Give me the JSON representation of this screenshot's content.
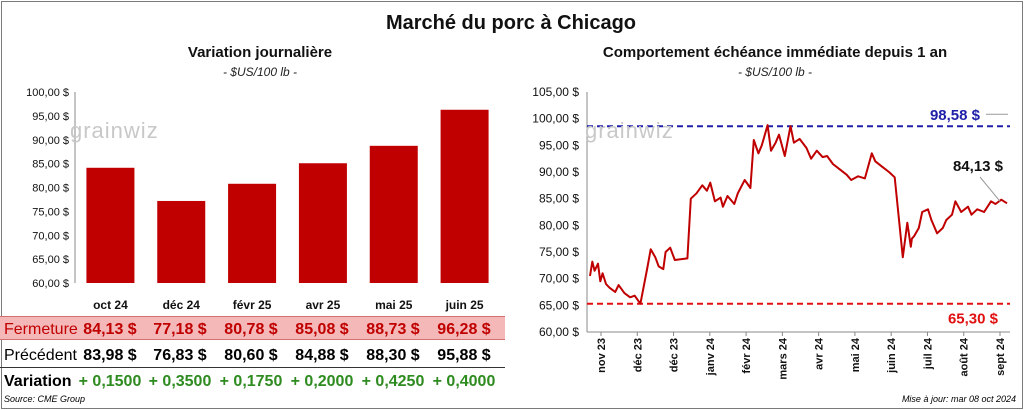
{
  "title": "Marché du porc à Chicago",
  "watermark": "grainwiz",
  "left_panel": {
    "title": "Variation journalière",
    "unit": "- $US/100 lb -"
  },
  "right_panel": {
    "title": "Comportement échéance immédiate depuis 1 an",
    "unit": "- $US/100 lb -"
  },
  "table": {
    "rows": [
      {
        "label": "Fermeture",
        "values": [
          "84,13  $",
          "77,18  $",
          "80,78  $",
          "85,08  $",
          "88,73  $",
          "96,28  $"
        ]
      },
      {
        "label": "Précédent",
        "values": [
          "83,98  $",
          "76,83  $",
          "80,60  $",
          "84,88  $",
          "88,30  $",
          "95,88  $"
        ]
      },
      {
        "label": "Variation",
        "values": [
          "+ 0,1500",
          "+ 0,3500",
          "+ 0,1750",
          "+ 0,2000",
          "+ 0,4250",
          "+ 0,4000"
        ]
      }
    ]
  },
  "footer": {
    "source": "Source: CME Group",
    "updated": "Mise à jour: mar 08 oct 2024"
  },
  "colors": {
    "bar": "#c00000",
    "line": "#c00000",
    "max_line": "#1f1fa8",
    "min_line": "#e01010"
  },
  "chart_data": [
    {
      "type": "bar",
      "categories": [
        "oct 24",
        "déc 24",
        "févr 25",
        "avr 25",
        "mai 25",
        "juin 25"
      ],
      "values": [
        84.13,
        77.18,
        80.78,
        85.08,
        88.73,
        96.28
      ],
      "ylim": [
        60,
        100
      ],
      "yticks": [
        "60,00 $",
        "65,00 $",
        "70,00 $",
        "75,00 $",
        "80,00 $",
        "85,00 $",
        "90,00 $",
        "95,00 $",
        "100,00 $"
      ],
      "grid": false
    },
    {
      "type": "line",
      "x": [
        "2023-10-09",
        "2023-10-11",
        "2023-10-13",
        "2023-10-16",
        "2023-10-18",
        "2023-10-20",
        "2023-10-23",
        "2023-10-26",
        "2023-10-31",
        "2023-11-03",
        "2023-11-08",
        "2023-11-13",
        "2023-11-17",
        "2023-11-22",
        "2023-11-28",
        "2023-12-01",
        "2023-12-05",
        "2023-12-08",
        "2023-12-12",
        "2023-12-14",
        "2023-12-18",
        "2023-12-22",
        "2024-01-02",
        "2024-01-05",
        "2024-01-10",
        "2024-01-15",
        "2024-01-19",
        "2024-01-22",
        "2024-01-26",
        "2024-01-31",
        "2024-02-02",
        "2024-02-06",
        "2024-02-12",
        "2024-02-15",
        "2024-02-21",
        "2024-02-26",
        "2024-02-29",
        "2024-03-04",
        "2024-03-07",
        "2024-03-12",
        "2024-03-15",
        "2024-03-19",
        "2024-03-22",
        "2024-03-27",
        "2024-04-01",
        "2024-04-04",
        "2024-04-09",
        "2024-04-15",
        "2024-04-19",
        "2024-04-24",
        "2024-04-29",
        "2024-05-03",
        "2024-05-08",
        "2024-05-14",
        "2024-05-20",
        "2024-05-24",
        "2024-05-30",
        "2024-06-05",
        "2024-06-11",
        "2024-06-14",
        "2024-06-20",
        "2024-06-26",
        "2024-07-01",
        "2024-07-08",
        "2024-07-12",
        "2024-07-15",
        "2024-07-16",
        "2024-07-18",
        "2024-07-22",
        "2024-07-25",
        "2024-07-30",
        "2024-08-02",
        "2024-08-07",
        "2024-08-12",
        "2024-08-15",
        "2024-08-20",
        "2024-08-23",
        "2024-08-28",
        "2024-09-03",
        "2024-09-06",
        "2024-09-11",
        "2024-09-17",
        "2024-09-23",
        "2024-09-27",
        "2024-10-02",
        "2024-10-07"
      ],
      "y": [
        70.5,
        73.2,
        71.5,
        72.8,
        69.5,
        71.0,
        69.0,
        68.3,
        67.5,
        68.8,
        67.3,
        66.5,
        66.8,
        65.3,
        72.0,
        75.5,
        74.0,
        72.3,
        71.8,
        75.0,
        75.8,
        73.5,
        73.8,
        85.0,
        86.0,
        87.5,
        86.5,
        88.0,
        84.5,
        85.2,
        83.5,
        85.5,
        84.0,
        86.0,
        88.5,
        87.0,
        96.0,
        93.5,
        95.0,
        98.8,
        94.0,
        95.5,
        97.0,
        93.0,
        98.6,
        95.5,
        96.2,
        94.5,
        92.5,
        94.0,
        92.8,
        93.0,
        91.5,
        90.5,
        89.5,
        88.5,
        89.2,
        88.8,
        93.5,
        92.0,
        91.0,
        90.0,
        89.0,
        74.0,
        80.5,
        76.0,
        77.5,
        78.0,
        79.5,
        82.5,
        83.0,
        81.0,
        78.5,
        79.5,
        81.0,
        82.0,
        84.5,
        82.5,
        83.5,
        82.0,
        83.0,
        82.5,
        84.5,
        84.0,
        84.8,
        84.13
      ],
      "xticks": [
        "nov 23",
        "déc 23",
        "déc 23",
        "janv 24",
        "févr 24",
        "mars 24",
        "avr 24",
        "mai 24",
        "juin 24",
        "juil 24",
        "août 24",
        "sept 24"
      ],
      "yticks": [
        "60,00 $",
        "65,00 $",
        "70,00 $",
        "75,00 $",
        "80,00 $",
        "85,00 $",
        "90,00 $",
        "95,00 $",
        "100,00 $",
        "105,00 $"
      ],
      "ylim": [
        60,
        105
      ],
      "max_value": 98.58,
      "min_value": 65.3,
      "last_value": 84.13,
      "max_label": "98,58 $",
      "min_label": "65,30 $",
      "last_label": "84,13 $",
      "grid": false
    }
  ]
}
